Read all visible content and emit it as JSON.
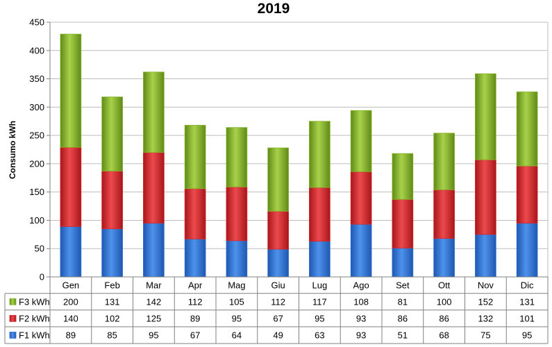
{
  "chart_data": {
    "type": "bar",
    "stacked": true,
    "title": "2019",
    "xlabel": "",
    "ylabel": "Consumo kWh",
    "ylim": [
      0,
      450
    ],
    "yticks": [
      0,
      50,
      100,
      150,
      200,
      250,
      300,
      350,
      400,
      450
    ],
    "grid": true,
    "categories": [
      "Gen",
      "Feb",
      "Mar",
      "Apr",
      "Mag",
      "Giu",
      "Lug",
      "Ago",
      "Set",
      "Ott",
      "Nov",
      "Dic"
    ],
    "series": [
      {
        "name": "F1 kWh",
        "color": "#2e74d6",
        "values": [
          89,
          85,
          95,
          67,
          64,
          49,
          63,
          93,
          51,
          68,
          75,
          95
        ]
      },
      {
        "name": "F2 kWh",
        "color": "#d8262a",
        "values": [
          140,
          102,
          125,
          89,
          95,
          67,
          95,
          93,
          86,
          86,
          132,
          101
        ]
      },
      {
        "name": "F3 kWh",
        "color": "#88b52a",
        "values": [
          200,
          131,
          142,
          112,
          105,
          112,
          117,
          108,
          81,
          100,
          152,
          131
        ]
      }
    ],
    "data_table": true
  }
}
